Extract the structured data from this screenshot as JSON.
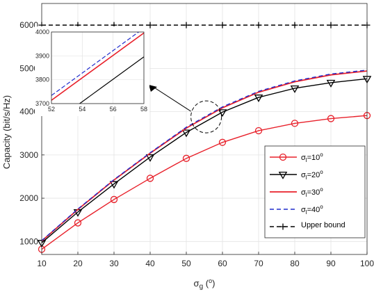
{
  "chart_data": {
    "type": "line",
    "title": "",
    "xlabel": "σ_g (°)",
    "xlabel_parts": {
      "sym": "σ",
      "sub": "g",
      "unit_open": " (",
      "unit_sup": "o",
      "unit_close": ")"
    },
    "ylabel": "Capacity (bit/s/Hz)",
    "xlim": [
      10,
      100
    ],
    "ylim": [
      700,
      6500
    ],
    "xticks": [
      "10",
      "20",
      "30",
      "40",
      "50",
      "60",
      "70",
      "80",
      "90",
      "100"
    ],
    "yticks": [
      "1000",
      "2000",
      "3000",
      "4000",
      "5000",
      "6000"
    ],
    "grid": true,
    "legend_position": "bottom-right",
    "x": [
      10,
      20,
      30,
      40,
      50,
      60,
      70,
      80,
      90,
      100
    ],
    "series": [
      {
        "name": "σ_l=10°",
        "label_parts": {
          "sym": "σ",
          "sub": "l",
          "val": "=10",
          "sup": "o"
        },
        "color": "#e8202a",
        "dash": "solid",
        "marker": "circle",
        "values": [
          820,
          1430,
          1970,
          2460,
          2920,
          3290,
          3560,
          3730,
          3840,
          3910
        ]
      },
      {
        "name": "σ_l=20°",
        "label_parts": {
          "sym": "σ",
          "sub": "l",
          "val": "=20",
          "sup": "o"
        },
        "color": "#000000",
        "dash": "solid",
        "marker": "triangle-down",
        "values": [
          970,
          1680,
          2330,
          2950,
          3520,
          3990,
          4330,
          4540,
          4670,
          4760
        ]
      },
      {
        "name": "σ_l=30°",
        "label_parts": {
          "sym": "σ",
          "sub": "l",
          "val": "=30",
          "sup": "o"
        },
        "color": "#e8202a",
        "dash": "solid",
        "marker": "none",
        "values": [
          1010,
          1740,
          2420,
          3040,
          3620,
          4090,
          4450,
          4690,
          4850,
          4940
        ]
      },
      {
        "name": "σ_l=40°",
        "label_parts": {
          "sym": "σ",
          "sub": "l",
          "val": "=40",
          "sup": "o"
        },
        "color": "#1f2ccc",
        "dash": "dashed",
        "marker": "none",
        "values": [
          1020,
          1750,
          2430,
          3050,
          3640,
          4110,
          4470,
          4710,
          4870,
          4960
        ]
      },
      {
        "name": "Upper bound",
        "label_parts": {
          "sym": "",
          "sub": "",
          "val": "Upper bound",
          "sup": ""
        },
        "color": "#000000",
        "dash": "dashed",
        "marker": "plus",
        "values": [
          6000,
          6000,
          6000,
          6000,
          6000,
          6000,
          6000,
          6000,
          6000,
          6000
        ]
      }
    ],
    "inset": {
      "xlim": [
        52,
        58
      ],
      "ylim": [
        3700,
        4000
      ],
      "xticks": [
        "52",
        "54",
        "56",
        "58"
      ],
      "yticks": [
        "3700",
        "3800",
        "3900",
        "4000"
      ],
      "zoom_center": [
        55.5,
        3880
      ]
    }
  }
}
